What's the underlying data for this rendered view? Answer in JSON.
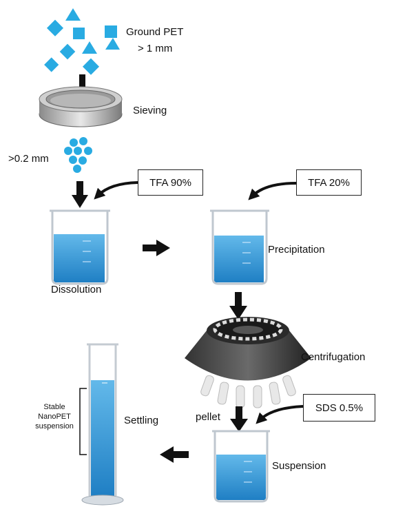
{
  "labels": {
    "ground_pet_line1": "Ground PET",
    "ground_pet_line2": "> 1 mm",
    "sieving": "Sieving",
    "size_02": ">0.2 mm",
    "dissolution": "Dissolution",
    "precipitation": "Precipitation",
    "centrifugation": "Centrifugation",
    "pellet": "pellet",
    "suspension": "Suspension",
    "settling": "Settling",
    "stable_line1": "Stable",
    "stable_line2": "NanoPET",
    "stable_line3": "suspension"
  },
  "reagents": {
    "tfa90": "TFA 90%",
    "tfa20": "TFA 20%",
    "sds": "SDS 0.5%"
  },
  "colors": {
    "particle": "#29abe2",
    "liquid": "#3aa0d8",
    "arrow": "#111111"
  }
}
